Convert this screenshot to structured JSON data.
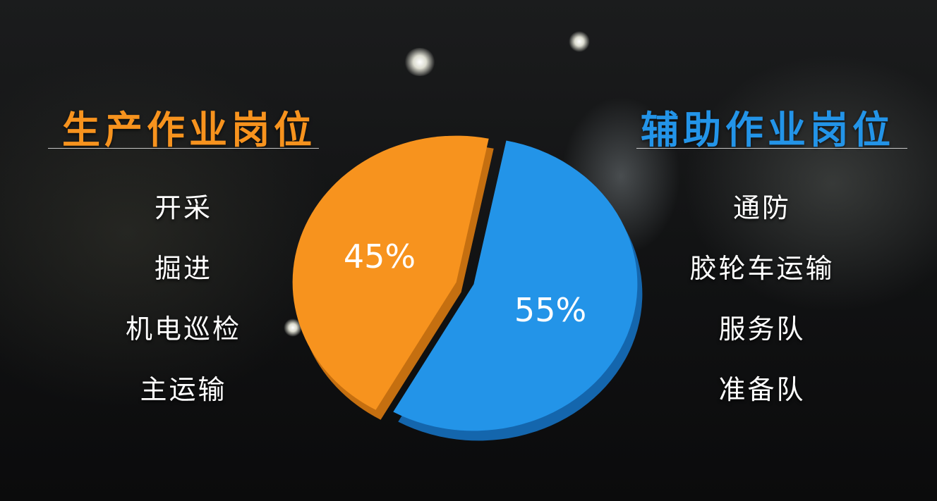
{
  "production": {
    "title": "生产作业岗位",
    "items": [
      "开采",
      "掘进",
      "机电巡检",
      "主运输"
    ]
  },
  "auxiliary": {
    "title": "辅助作业岗位",
    "items": [
      "通防",
      "胶轮车运输",
      "服务队",
      "准备队"
    ]
  },
  "chart_data": {
    "type": "pie",
    "title": "",
    "slices": [
      {
        "label": "45%",
        "value": 45,
        "color": "#f7931e",
        "side_color": "#c56f10"
      },
      {
        "label": "55%",
        "value": 55,
        "color": "#2394e8",
        "side_color": "#1466ad"
      }
    ]
  }
}
